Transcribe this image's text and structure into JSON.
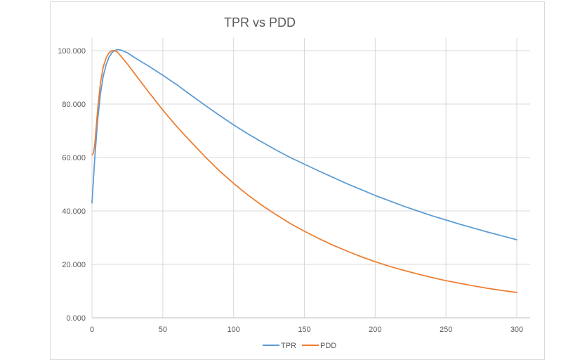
{
  "chart_data": {
    "type": "line",
    "title": "TPR vs PDD",
    "xlabel": "",
    "ylabel": "",
    "xlim": [
      0,
      300
    ],
    "ylim": [
      0,
      100
    ],
    "x_ticks": [
      "0",
      "50",
      "100",
      "150",
      "200",
      "250",
      "300"
    ],
    "y_ticks": [
      "0.000",
      "20.000",
      "40.000",
      "60.000",
      "80.000",
      "100.000"
    ],
    "grid": true,
    "legend_position": "bottom",
    "series": [
      {
        "name": "TPR",
        "color": "#5b9bd5",
        "x": [
          0,
          2,
          4,
          6,
          8,
          10,
          12,
          14,
          16,
          18,
          20,
          25,
          30,
          40,
          50,
          60,
          70,
          80,
          90,
          100,
          110,
          120,
          130,
          140,
          150,
          160,
          170,
          180,
          190,
          200,
          210,
          220,
          230,
          240,
          250,
          260,
          270,
          280,
          290,
          300
        ],
        "y": [
          43,
          60,
          74,
          84,
          90.5,
          94.8,
          97.5,
          99.2,
          100,
          100.4,
          100.3,
          99.2,
          97.4,
          94.2,
          90.8,
          87.2,
          83.3,
          79.5,
          75.8,
          72.2,
          68.9,
          65.8,
          62.8,
          60.0,
          57.5,
          55.0,
          52.6,
          50.2,
          48.0,
          45.8,
          43.8,
          41.8,
          40.0,
          38.2,
          36.6,
          35.0,
          33.5,
          32.0,
          30.6,
          29.2
        ]
      },
      {
        "name": "PDD",
        "color": "#ed7d31",
        "x": [
          0,
          1,
          2,
          4,
          6,
          8,
          10,
          12,
          14,
          16,
          18,
          20,
          25,
          30,
          40,
          50,
          60,
          70,
          80,
          90,
          100,
          110,
          120,
          130,
          140,
          150,
          160,
          170,
          180,
          190,
          200,
          210,
          220,
          230,
          240,
          250,
          260,
          270,
          280,
          290,
          300
        ],
        "y": [
          61,
          61.5,
          65,
          78,
          88,
          94,
          97.3,
          99.2,
          100,
          100,
          99.4,
          98.2,
          95,
          91.5,
          84.5,
          77.8,
          71.5,
          65.8,
          60.2,
          55.0,
          50.3,
          46.0,
          42.1,
          38.6,
          35.3,
          32.4,
          29.7,
          27.2,
          25.0,
          22.9,
          21.0,
          19.3,
          17.8,
          16.4,
          15.1,
          13.9,
          12.9,
          11.9,
          11.0,
          10.2,
          9.5
        ]
      }
    ]
  }
}
